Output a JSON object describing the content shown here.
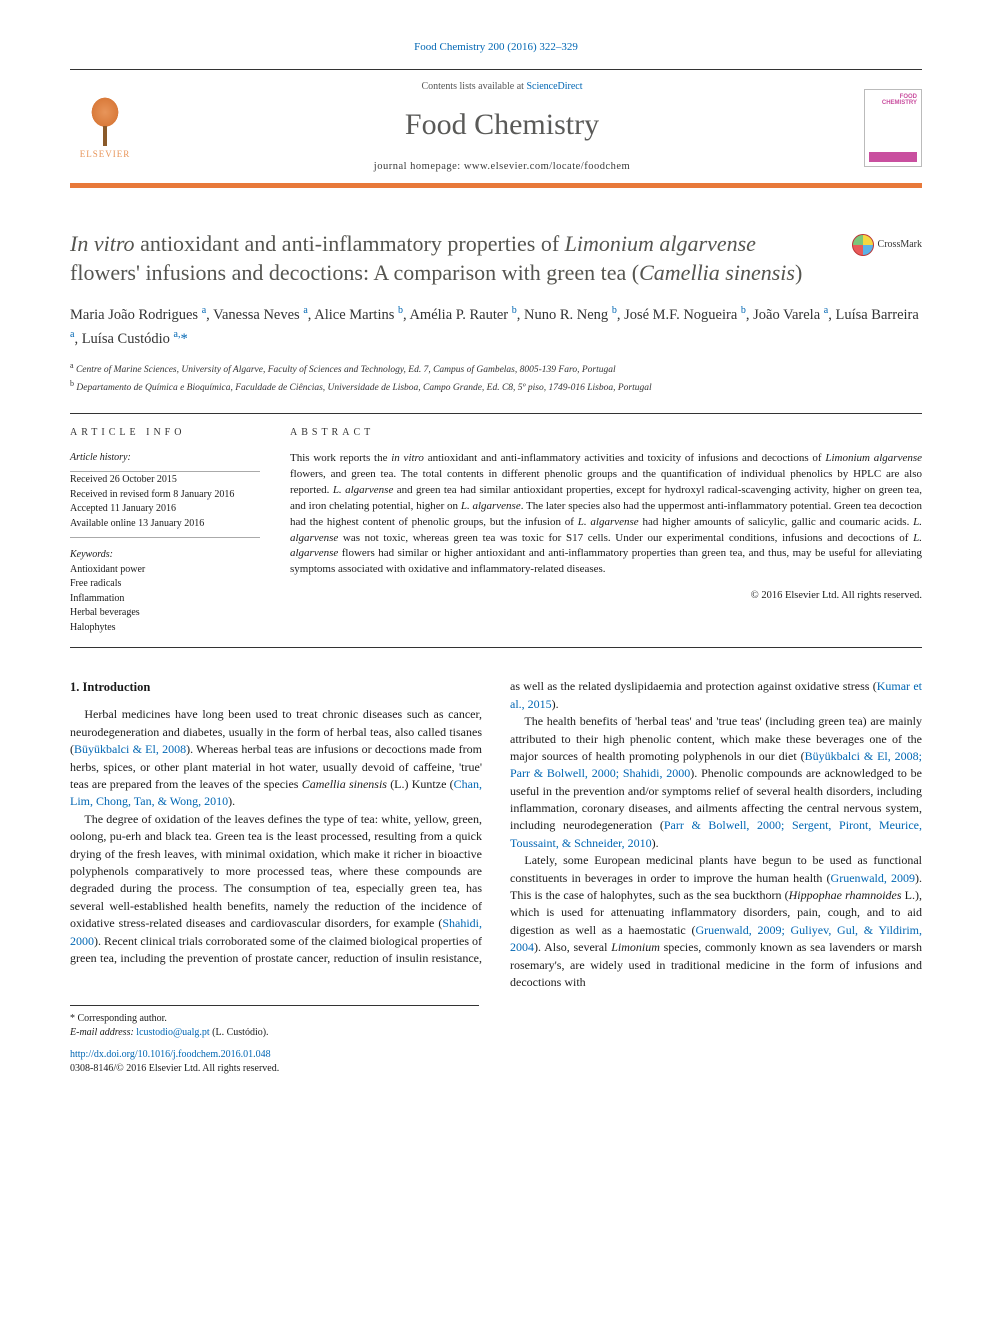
{
  "journal": {
    "header_citation": "Food Chemistry 200 (2016) 322–329",
    "contents_line_prefix": "Contents lists available at ",
    "sciencedirect": "ScienceDirect",
    "name": "Food Chemistry",
    "homepage_prefix": "journal homepage: ",
    "homepage_url": "www.elsevier.com/locate/foodchem",
    "publisher": "ELSEVIER",
    "cover_title": "FOOD CHEMISTRY",
    "orange_bar_color": "#e8793a",
    "link_color": "#0066b3"
  },
  "crossmark": {
    "label": "CrossMark"
  },
  "article": {
    "title_parts": {
      "p1": "In vitro",
      "p2": " antioxidant and anti-inflammatory properties of ",
      "p3": "Limonium algarvense",
      "p4": " flowers' infusions and decoctions: A comparison with green tea (",
      "p5": "Camellia sinensis",
      "p6": ")"
    },
    "authors_html": "Maria João Rodrigues <sup>a</sup>, Vanessa Neves <sup>a</sup>, Alice Martins <sup>b</sup>, Amélia P. Rauter <sup>b</sup>, Nuno R. Neng <sup>b</sup>, José M.F. Nogueira <sup>b</sup>, João Varela <sup>a</sup>, Luísa Barreira <sup>a</sup>, Luísa Custódio <sup>a,</sup><span class=\"corr\">*</span>",
    "affiliations": {
      "a": "Centre of Marine Sciences, University of Algarve, Faculty of Sciences and Technology, Ed. 7, Campus of Gambelas, 8005-139 Faro, Portugal",
      "b": "Departamento de Química e Bioquímica, Faculdade de Ciências, Universidade de Lisboa, Campo Grande, Ed. C8, 5º piso, 1749-016 Lisboa, Portugal"
    }
  },
  "meta": {
    "info_head": "ARTICLE INFO",
    "abstract_head": "ABSTRACT",
    "history_head": "Article history:",
    "history": {
      "received": "Received 26 October 2015",
      "revised": "Received in revised form 8 January 2016",
      "accepted": "Accepted 11 January 2016",
      "online": "Available online 13 January 2016"
    },
    "keywords_head": "Keywords:",
    "keywords": [
      "Antioxidant power",
      "Free radicals",
      "Inflammation",
      "Herbal beverages",
      "Halophytes"
    ],
    "abstract": "This work reports the in vitro antioxidant and anti-inflammatory activities and toxicity of infusions and decoctions of Limonium algarvense flowers, and green tea. The total contents in different phenolic groups and the quantification of individual phenolics by HPLC are also reported. L. algarvense and green tea had similar antioxidant properties, except for hydroxyl radical-scavenging activity, higher on green tea, and iron chelating potential, higher on L. algarvense. The later species also had the uppermost anti-inflammatory potential. Green tea decoction had the highest content of phenolic groups, but the infusion of L. algarvense had higher amounts of salicylic, gallic and coumaric acids. L. algarvense was not toxic, whereas green tea was toxic for S17 cells. Under our experimental conditions, infusions and decoctions of L. algarvense flowers had similar or higher antioxidant and anti-inflammatory properties than green tea, and thus, may be useful for alleviating symptoms associated with oxidative and inflammatory-related diseases.",
    "copyright": "© 2016 Elsevier Ltd. All rights reserved."
  },
  "body": {
    "section_number": "1.",
    "section_title": "Introduction",
    "paragraphs": [
      "Herbal medicines have long been used to treat chronic diseases such as cancer, neurodegeneration and diabetes, usually in the form of herbal teas, also called tisanes (|Büyükbalci & El, 2008|). Whereas herbal teas are infusions or decoctions made from herbs, spices, or other plant material in hot water, usually devoid of caffeine, 'true' teas are prepared from the leaves of the species ^Camellia sinensis^ (L.) Kuntze (|Chan, Lim, Chong, Tan, & Wong, 2010|).",
      "The degree of oxidation of the leaves defines the type of tea: white, yellow, green, oolong, pu-erh and black tea. Green tea is the least processed, resulting from a quick drying of the fresh leaves, with minimal oxidation, which make it richer in bioactive polyphenols comparatively to more processed teas, where these compounds are degraded during the process. The consumption of tea, especially green tea, has several well-established health benefits, namely the reduction of the incidence of oxidative stress-related diseases and cardiovascular disorders, for example (|Shahidi, 2000|). Recent clinical trials corroborated some of the claimed biological properties of green tea, including the prevention of prostate cancer, reduction of insulin resistance, as well as the related dyslipidaemia and protection against oxidative stress (|Kumar et al., 2015|).",
      "The health benefits of 'herbal teas' and 'true teas' (including green tea) are mainly attributed to their high phenolic content, which make these beverages one of the major sources of health promoting polyphenols in our diet (|Büyükbalci & El, 2008; Parr & Bolwell, 2000; Shahidi, 2000|). Phenolic compounds are acknowledged to be useful in the prevention and/or symptoms relief of several health disorders, including inflammation, coronary diseases, and ailments affecting the central nervous system, including neurodegeneration (|Parr & Bolwell, 2000; Sergent, Piront, Meurice, Toussaint, & Schneider, 2010|).",
      "Lately, some European medicinal plants have begun to be used as functional constituents in beverages in order to improve the human health (|Gruenwald, 2009|). This is the case of halophytes, such as the sea buckthorn (^Hippophae rhamnoides^ L.), which is used for attenuating inflammatory disorders, pain, cough, and to aid digestion as well as a haemostatic (|Gruenwald, 2009; Guliyev, Gul, & Yildirim, 2004|). Also, several ^Limonium^ species, commonly known as sea lavenders or marsh rosemary's, are widely used in traditional medicine in the form of infusions and decoctions with"
    ]
  },
  "footnote": {
    "corr_label": "* Corresponding author.",
    "email_label": "E-mail address:",
    "email": "lcustodio@ualg.pt",
    "email_person": "(L. Custódio).",
    "doi": "http://dx.doi.org/10.1016/j.foodchem.2016.01.048",
    "issn_line": "0308-8146/© 2016 Elsevier Ltd. All rights reserved."
  }
}
